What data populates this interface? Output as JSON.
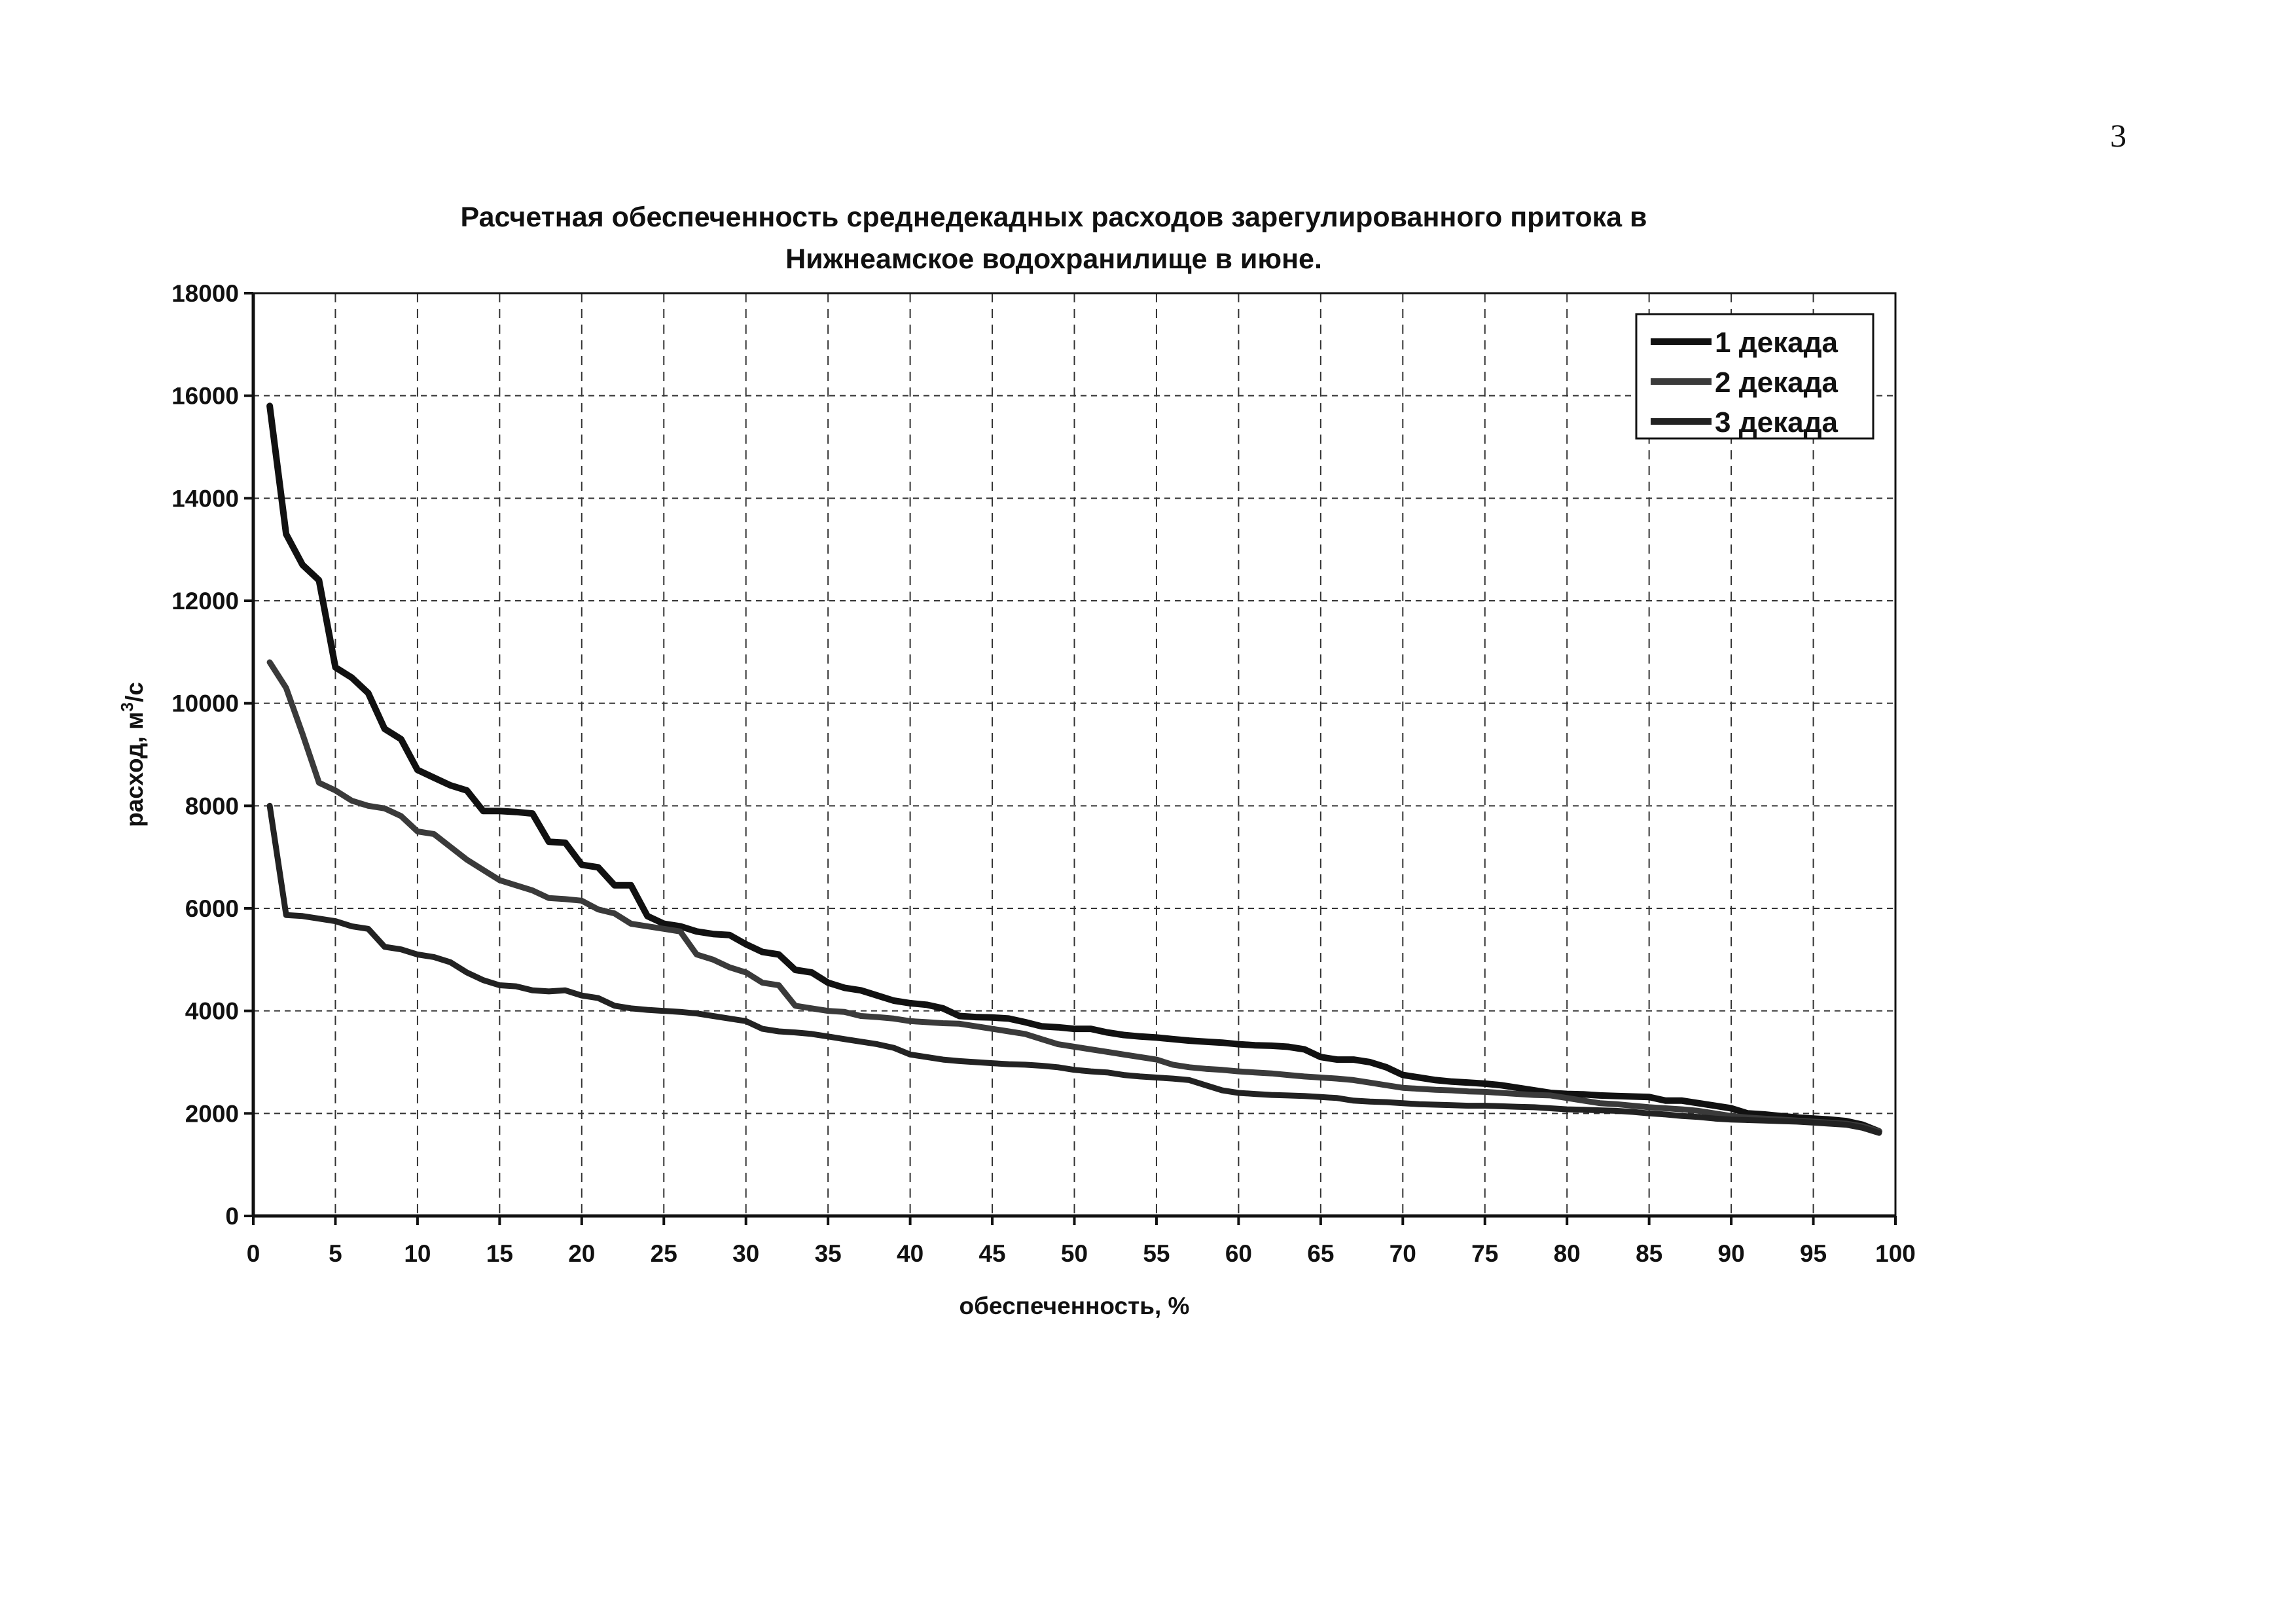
{
  "page_number": "3",
  "chart_data": {
    "type": "line",
    "title_line1": "Расчетная обеспеченность среднедекадных расходов зарегулированного притока в",
    "title_line2": "Нижнеамское водохранилище в июне.",
    "xlabel": "обеспеченность, %",
    "ylabel_prefix": "расход, м",
    "ylabel_sup": "3",
    "ylabel_suffix": "/с",
    "xlim": [
      0,
      100
    ],
    "ylim": [
      0,
      18000
    ],
    "xticks": [
      0,
      5,
      10,
      15,
      20,
      25,
      30,
      35,
      40,
      45,
      50,
      55,
      60,
      65,
      70,
      75,
      80,
      85,
      90,
      95,
      100
    ],
    "yticks": [
      0,
      2000,
      4000,
      6000,
      8000,
      10000,
      12000,
      14000,
      16000,
      18000
    ],
    "grid": true,
    "legend_position": "top-right",
    "series": [
      {
        "name": "1 декада",
        "color": "#111111",
        "x": [
          1,
          2,
          3,
          4,
          5,
          6,
          7,
          8,
          9,
          10,
          11,
          12,
          13,
          14,
          15,
          16,
          17,
          18,
          19,
          20,
          21,
          22,
          23,
          24,
          25,
          26,
          27,
          28,
          29,
          30,
          31,
          32,
          33,
          34,
          35,
          36,
          37,
          38,
          39,
          40,
          41,
          42,
          43,
          44,
          45,
          46,
          47,
          48,
          49,
          50,
          51,
          52,
          53,
          54,
          55,
          56,
          57,
          58,
          59,
          60,
          61,
          62,
          63,
          64,
          65,
          66,
          67,
          68,
          69,
          70,
          71,
          72,
          73,
          74,
          75,
          76,
          77,
          78,
          79,
          80,
          81,
          82,
          83,
          84,
          85,
          86,
          87,
          88,
          89,
          90,
          91,
          92,
          93,
          94,
          95,
          96,
          97,
          98,
          99
        ],
        "values": [
          15800,
          13300,
          12700,
          12400,
          10700,
          10500,
          10200,
          9500,
          9300,
          8700,
          8550,
          8400,
          8300,
          7900,
          7900,
          7880,
          7850,
          7300,
          7280,
          6850,
          6800,
          6450,
          6450,
          5850,
          5700,
          5650,
          5550,
          5500,
          5480,
          5300,
          5150,
          5100,
          4800,
          4750,
          4550,
          4450,
          4400,
          4300,
          4200,
          4150,
          4120,
          4050,
          3900,
          3880,
          3870,
          3850,
          3780,
          3700,
          3680,
          3650,
          3650,
          3580,
          3530,
          3500,
          3480,
          3450,
          3420,
          3400,
          3380,
          3350,
          3330,
          3320,
          3300,
          3250,
          3100,
          3050,
          3050,
          3000,
          2900,
          2750,
          2700,
          2650,
          2620,
          2600,
          2580,
          2550,
          2500,
          2450,
          2400,
          2380,
          2370,
          2350,
          2340,
          2330,
          2320,
          2250,
          2250,
          2200,
          2150,
          2100,
          2000,
          1980,
          1950,
          1920,
          1900,
          1880,
          1850,
          1780,
          1650
        ]
      },
      {
        "name": "2 декада",
        "color": "#3a3a3a",
        "x": [
          1,
          2,
          3,
          4,
          5,
          6,
          7,
          8,
          9,
          10,
          11,
          12,
          13,
          14,
          15,
          16,
          17,
          18,
          19,
          20,
          21,
          22,
          23,
          24,
          25,
          26,
          27,
          28,
          29,
          30,
          31,
          32,
          33,
          34,
          35,
          36,
          37,
          38,
          39,
          40,
          41,
          42,
          43,
          44,
          45,
          46,
          47,
          48,
          49,
          50,
          51,
          52,
          53,
          54,
          55,
          56,
          57,
          58,
          59,
          60,
          61,
          62,
          63,
          64,
          65,
          66,
          67,
          68,
          69,
          70,
          71,
          72,
          73,
          74,
          75,
          76,
          77,
          78,
          79,
          80,
          81,
          82,
          83,
          84,
          85,
          86,
          87,
          88,
          89,
          90,
          91,
          92,
          93,
          94,
          95,
          96,
          97,
          98,
          99
        ],
        "values": [
          10800,
          10300,
          9400,
          8450,
          8300,
          8100,
          8000,
          7950,
          7800,
          7500,
          7450,
          7200,
          6950,
          6750,
          6550,
          6450,
          6350,
          6200,
          6180,
          6150,
          5980,
          5900,
          5700,
          5650,
          5600,
          5550,
          5100,
          5000,
          4850,
          4750,
          4550,
          4500,
          4100,
          4050,
          4000,
          3980,
          3900,
          3880,
          3850,
          3800,
          3780,
          3760,
          3750,
          3700,
          3650,
          3600,
          3550,
          3450,
          3350,
          3300,
          3250,
          3200,
          3150,
          3100,
          3050,
          2950,
          2900,
          2870,
          2850,
          2820,
          2800,
          2780,
          2750,
          2720,
          2700,
          2680,
          2650,
          2600,
          2550,
          2500,
          2480,
          2460,
          2450,
          2430,
          2420,
          2400,
          2380,
          2360,
          2350,
          2300,
          2250,
          2200,
          2180,
          2150,
          2120,
          2100,
          2080,
          2050,
          2000,
          1950,
          1920,
          1900,
          1880,
          1860,
          1840,
          1820,
          1800,
          1750,
          1650
        ]
      },
      {
        "name": "3 декада",
        "color": "#222222",
        "x": [
          1,
          2,
          3,
          4,
          5,
          6,
          7,
          8,
          9,
          10,
          11,
          12,
          13,
          14,
          15,
          16,
          17,
          18,
          19,
          20,
          21,
          22,
          23,
          24,
          25,
          26,
          27,
          28,
          29,
          30,
          31,
          32,
          33,
          34,
          35,
          36,
          37,
          38,
          39,
          40,
          41,
          42,
          43,
          44,
          45,
          46,
          47,
          48,
          49,
          50,
          51,
          52,
          53,
          54,
          55,
          56,
          57,
          58,
          59,
          60,
          61,
          62,
          63,
          64,
          65,
          66,
          67,
          68,
          69,
          70,
          71,
          72,
          73,
          74,
          75,
          76,
          77,
          78,
          79,
          80,
          81,
          82,
          83,
          84,
          85,
          86,
          87,
          88,
          89,
          90,
          91,
          92,
          93,
          94,
          95,
          96,
          97,
          98,
          99
        ],
        "values": [
          8000,
          5870,
          5850,
          5800,
          5750,
          5650,
          5600,
          5250,
          5200,
          5100,
          5050,
          4950,
          4750,
          4600,
          4500,
          4480,
          4400,
          4380,
          4400,
          4300,
          4250,
          4100,
          4050,
          4020,
          4000,
          3980,
          3950,
          3900,
          3850,
          3800,
          3650,
          3600,
          3580,
          3550,
          3500,
          3450,
          3400,
          3350,
          3280,
          3150,
          3100,
          3050,
          3020,
          3000,
          2980,
          2960,
          2950,
          2930,
          2900,
          2850,
          2820,
          2800,
          2750,
          2720,
          2700,
          2680,
          2650,
          2550,
          2450,
          2400,
          2380,
          2360,
          2350,
          2340,
          2320,
          2300,
          2250,
          2230,
          2220,
          2200,
          2180,
          2170,
          2160,
          2150,
          2150,
          2140,
          2130,
          2120,
          2100,
          2080,
          2070,
          2060,
          2050,
          2030,
          2000,
          1980,
          1950,
          1930,
          1900,
          1880,
          1870,
          1860,
          1850,
          1840,
          1820,
          1800,
          1780,
          1720,
          1620
        ]
      }
    ]
  }
}
